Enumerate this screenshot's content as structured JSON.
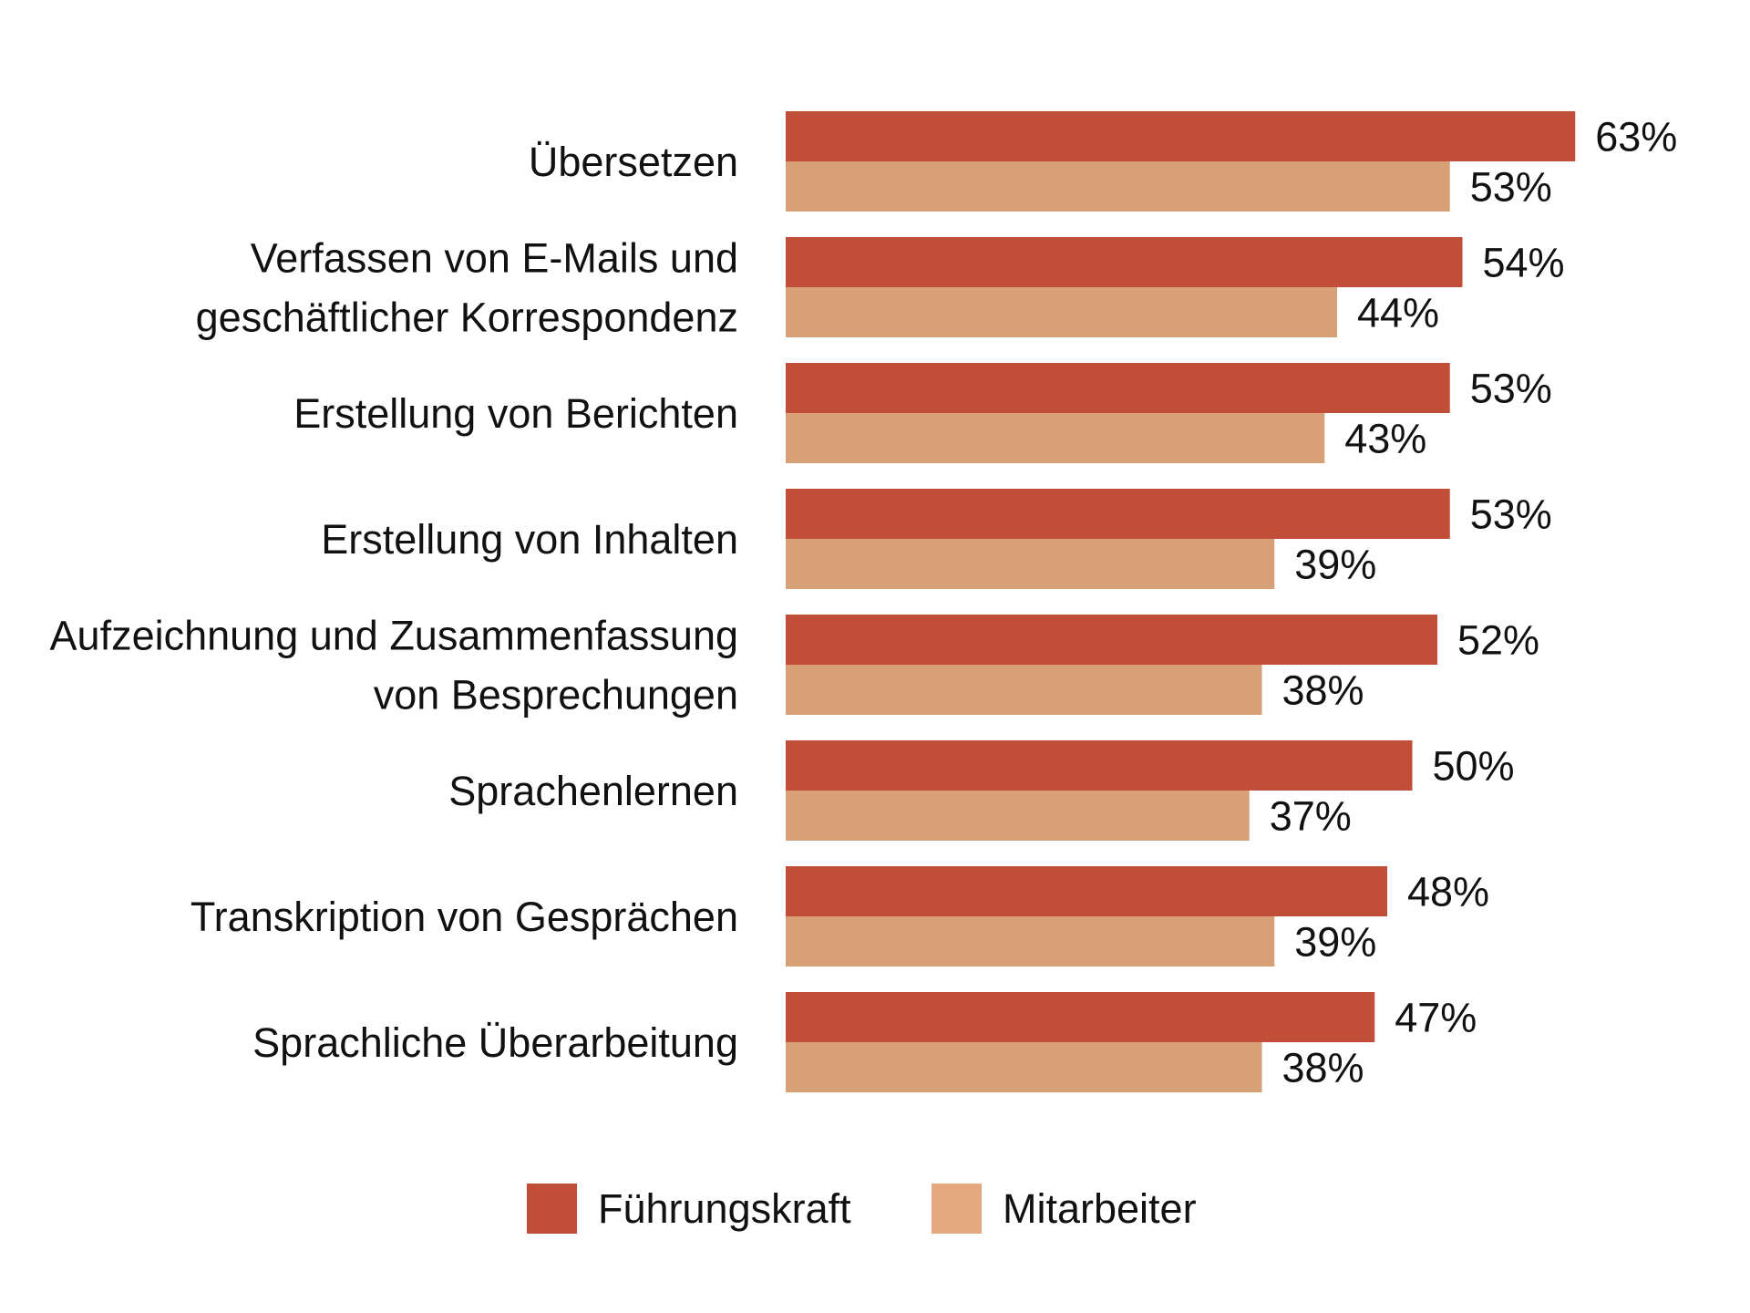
{
  "chart_data": {
    "type": "bar",
    "orientation": "horizontal",
    "title": "",
    "xlabel": "",
    "ylabel": "",
    "categories": [
      [
        "Übersetzen"
      ],
      [
        "Verfassen von E-Mails und",
        "geschäftlicher Korrespondenz"
      ],
      [
        "Erstellung von Berichten"
      ],
      [
        "Erstellung von Inhalten"
      ],
      [
        "Aufzeichnung und Zusammenfassung",
        "von Besprechungen"
      ],
      [
        "Sprachenlernen"
      ],
      [
        "Transkription von Gesprächen"
      ],
      [
        "Sprachliche Überarbeitung"
      ]
    ],
    "series": [
      {
        "name": "Führungskraft",
        "color": "#c04e39",
        "values": [
          63,
          54,
          53,
          53,
          52,
          50,
          48,
          47
        ],
        "labels": [
          "63%",
          "54%",
          "53%",
          "53%",
          "52%",
          "50%",
          "48%",
          "47%"
        ]
      },
      {
        "name": "Mitarbeiter",
        "color": "#d8a076",
        "legend_color": "#e5a87f",
        "values": [
          53,
          44,
          43,
          39,
          38,
          37,
          39,
          38
        ],
        "labels": [
          "53%",
          "44%",
          "43%",
          "39%",
          "38%",
          "37%",
          "39%",
          "38%"
        ]
      }
    ],
    "unit": "%",
    "xlim": [
      0,
      63
    ],
    "grid": false,
    "legend_position": "bottom"
  }
}
